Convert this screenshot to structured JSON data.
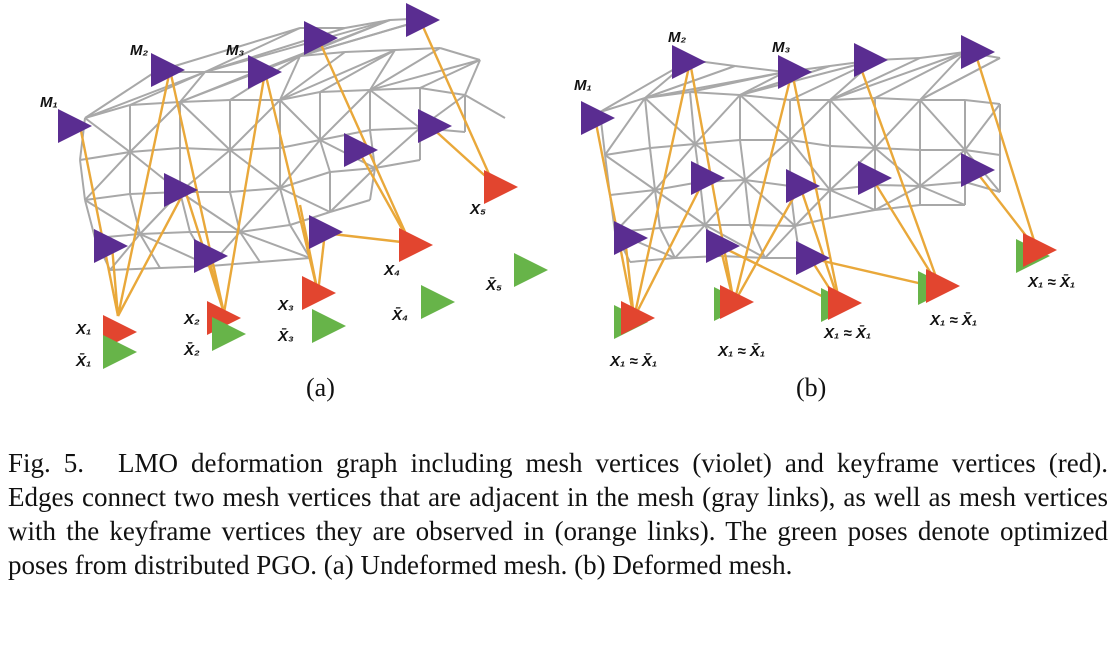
{
  "colors": {
    "mesh_vertex": "#5a2d91",
    "keyframe_vertex": "#e2452f",
    "optimized_pose": "#67b449",
    "mesh_edge": "#a8a8a8",
    "observation_edge": "#e9a83a"
  },
  "panel_a": {
    "sublabel": "(a)",
    "labels": {
      "m1": "M₁",
      "m2": "M₂",
      "m3": "M₃",
      "x1": "X₁",
      "x2": "X₂",
      "x3": "X₃",
      "x4": "X₄",
      "x5": "X₅",
      "xb1": "X̄₁",
      "xb2": "X̄₂",
      "xb3": "X̄₃",
      "xb4": "X̄₄",
      "xb5": "X̄₅"
    }
  },
  "panel_b": {
    "sublabel": "(b)",
    "labels": {
      "m1": "M₁",
      "m2": "M₂",
      "m3": "M₃",
      "eq1": "X₁ ≈ X̄₁",
      "eq2": "X₁ ≈ X̄₁",
      "eq3": "X₁ ≈ X̄₁",
      "eq4": "X₁ ≈ X̄₁",
      "eq5": "X₁ ≈ X̄₁"
    }
  },
  "caption": {
    "fig_number": "Fig. 5.",
    "text": "LMO deformation graph including mesh vertices (violet) and keyframe vertices (red). Edges connect two mesh vertices that are adjacent in the mesh (gray links), as well as mesh vertices with the keyframe vertices they are observed in (orange links). The green poses denote optimized poses from distributed PGO. (a) Undeformed mesh. (b) Deformed mesh."
  }
}
